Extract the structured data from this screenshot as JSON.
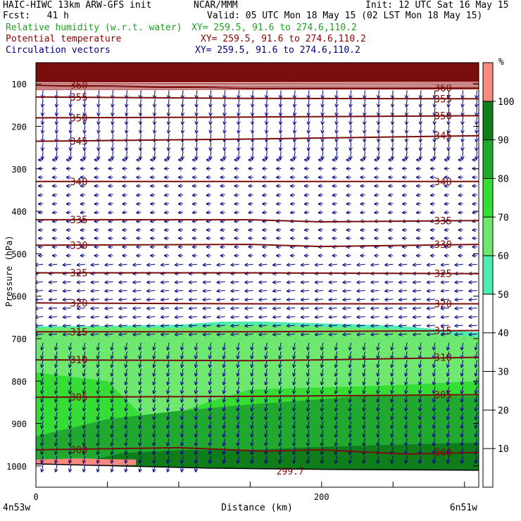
{
  "header": {
    "title": "HAIC-HIWC 13km ARW-GFS init",
    "org": "NCAR/MMM",
    "init": "Init: 12 UTC Sat 16 May 15",
    "fcst": "Fcst:   41 h",
    "valid": "Valid: 05 UTC Mon 18 May 15 (02 LST Mon 18 May 15)",
    "fields": [
      {
        "label": "Relative humidity (w.r.t. water)",
        "xy": "XY= 259.5, 91.6 to 274.6,110.2",
        "color": "#1f9f1f"
      },
      {
        "label": "Potential temperature",
        "xy": "XY= 259.5, 91.6 to 274.6,110.2",
        "color": "#8b0000"
      },
      {
        "label": "Circulation vectors",
        "xy": "XY= 259.5, 91.6 to 274.6,110.2",
        "color": "#000080"
      }
    ]
  },
  "chart_data": {
    "type": "area",
    "title": "",
    "xlabel": "Distance (km)",
    "ylabel": "Pressure (hPa)",
    "xlim": [
      0,
      310
    ],
    "ylim": [
      1050,
      50
    ],
    "x_ticks": [
      0,
      200
    ],
    "y_ticks": [
      100,
      200,
      300,
      400,
      500,
      600,
      700,
      800,
      900,
      1000
    ],
    "x_endpoints": {
      "left": "4n53w",
      "right": "6n51w"
    },
    "colorbar": {
      "unit": "%",
      "labels": [
        100,
        90,
        80,
        70,
        60,
        50,
        40,
        30,
        20,
        10
      ],
      "colors": [
        {
          "from": 100,
          "to": 110,
          "color": "#f88a80"
        },
        {
          "from": 90,
          "to": 100,
          "color": "#0e7d1a"
        },
        {
          "from": 80,
          "to": 90,
          "color": "#21a82f"
        },
        {
          "from": 70,
          "to": 80,
          "color": "#35dd35"
        },
        {
          "from": 60,
          "to": 70,
          "color": "#6fe86f"
        },
        {
          "from": 50,
          "to": 60,
          "color": "#4eecb0"
        },
        {
          "from": 0,
          "to": 50,
          "color": "#ffffff"
        }
      ]
    },
    "rh_regions": [
      {
        "band": "50-60",
        "top": [
          [
            0,
            671
          ],
          [
            50,
            670
          ],
          [
            100,
            667
          ],
          [
            130,
            660
          ],
          [
            160,
            660
          ],
          [
            200,
            664
          ],
          [
            250,
            669
          ],
          [
            300,
            683
          ],
          [
            310,
            685
          ]
        ]
      },
      {
        "band": "60-70",
        "top": [
          [
            0,
            675
          ],
          [
            50,
            673
          ],
          [
            100,
            675
          ],
          [
            130,
            668
          ],
          [
            160,
            668
          ],
          [
            200,
            672
          ],
          [
            250,
            677
          ],
          [
            300,
            693
          ],
          [
            310,
            697
          ]
        ]
      },
      {
        "band": "70-80",
        "top": [
          [
            0,
            780
          ],
          [
            50,
            800
          ],
          [
            80,
            900
          ],
          [
            120,
            850
          ],
          [
            150,
            820
          ],
          [
            200,
            815
          ],
          [
            250,
            810
          ],
          [
            310,
            800
          ]
        ]
      },
      {
        "band": "80-90",
        "top": [
          [
            0,
            930
          ],
          [
            50,
            890
          ],
          [
            100,
            870
          ],
          [
            150,
            855
          ],
          [
            190,
            845
          ],
          [
            230,
            835
          ],
          [
            270,
            835
          ],
          [
            310,
            835
          ]
        ]
      },
      {
        "band": "90-100",
        "top": [
          [
            0,
            995
          ],
          [
            40,
            985
          ],
          [
            60,
            970
          ],
          [
            100,
            963
          ],
          [
            150,
            962
          ],
          [
            200,
            955
          ],
          [
            250,
            950
          ],
          [
            310,
            945
          ]
        ]
      },
      {
        "band": "100-110",
        "top": [
          [
            0,
            985
          ],
          [
            30,
            982
          ],
          [
            50,
            984
          ],
          [
            70,
            985
          ]
        ]
      }
    ],
    "theta_contours": [
      {
        "label": "360",
        "points": [
          [
            0,
            103
          ],
          [
            150,
            110
          ],
          [
            310,
            110
          ]
        ]
      },
      {
        "label": "355",
        "points": [
          [
            0,
            131
          ],
          [
            150,
            134
          ],
          [
            310,
            135
          ]
        ]
      },
      {
        "label": "350",
        "points": [
          [
            0,
            180
          ],
          [
            150,
            178
          ],
          [
            310,
            175
          ]
        ]
      },
      {
        "label": "345",
        "points": [
          [
            0,
            235
          ],
          [
            150,
            230
          ],
          [
            310,
            222
          ]
        ]
      },
      {
        "label": "340",
        "points": [
          [
            0,
            330
          ],
          [
            150,
            330
          ],
          [
            310,
            330
          ]
        ]
      },
      {
        "label": "335",
        "points": [
          [
            0,
            420
          ],
          [
            150,
            420
          ],
          [
            200,
            425
          ],
          [
            310,
            422
          ]
        ]
      },
      {
        "label": "330",
        "points": [
          [
            0,
            480
          ],
          [
            150,
            478
          ],
          [
            200,
            483
          ],
          [
            310,
            478
          ]
        ]
      },
      {
        "label": "325",
        "points": [
          [
            0,
            545
          ],
          [
            150,
            545
          ],
          [
            310,
            547
          ]
        ]
      },
      {
        "label": "320",
        "points": [
          [
            0,
            616
          ],
          [
            150,
            618
          ],
          [
            310,
            618
          ]
        ]
      },
      {
        "label": "315",
        "points": [
          [
            0,
            684
          ],
          [
            150,
            684
          ],
          [
            310,
            681
          ]
        ]
      },
      {
        "label": "310",
        "points": [
          [
            0,
            750
          ],
          [
            150,
            752
          ],
          [
            200,
            750
          ],
          [
            310,
            744
          ]
        ]
      },
      {
        "label": "305",
        "points": [
          [
            0,
            838
          ],
          [
            150,
            836
          ],
          [
            310,
            832
          ]
        ]
      },
      {
        "label": "300",
        "points": [
          [
            0,
            962
          ],
          [
            100,
            957
          ],
          [
            160,
            965
          ],
          [
            200,
            962
          ],
          [
            260,
            972
          ],
          [
            310,
            968
          ]
        ]
      }
    ],
    "labels": [
      {
        "text": "299.7",
        "x": 178,
        "p": 1012
      }
    ],
    "series": [
      {
        "name": "Relative humidity (w.r.t. water)",
        "unit": "%"
      },
      {
        "name": "Potential temperature"
      },
      {
        "name": "Circulation vectors"
      }
    ]
  }
}
